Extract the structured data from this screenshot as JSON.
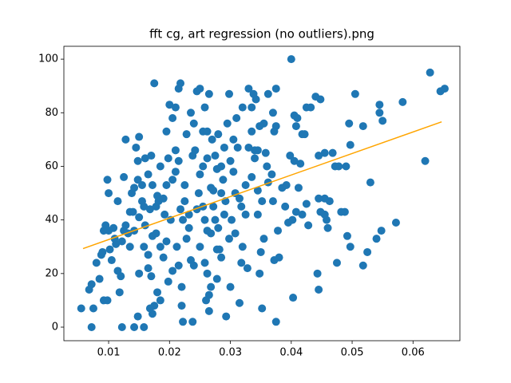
{
  "chart_data": {
    "type": "scatter",
    "title": "fft cg, art regression (no outliers).png",
    "xlim": [
      0.00265,
      0.0677
    ],
    "ylim": [
      -5.06,
      104.8
    ],
    "xticks": [
      0.01,
      0.02,
      0.03,
      0.04,
      0.05,
      0.06
    ],
    "yticks": [
      0,
      20,
      40,
      60,
      80,
      100
    ],
    "grid": false,
    "series": [
      {
        "type": "scatter",
        "color": "#1f77b4",
        "x": [
          0.04,
          0.0628,
          0.0645,
          0.0652,
          0.0583,
          0.0545,
          0.0545,
          0.055,
          0.0518,
          0.0505,
          0.0495,
          0.0497,
          0.062,
          0.053,
          0.0572,
          0.0548,
          0.054,
          0.0525,
          0.0518,
          0.0497,
          0.0492,
          0.0488,
          0.0482,
          0.0475,
          0.049,
          0.0478,
          0.0468,
          0.0472,
          0.0458,
          0.0455,
          0.0455,
          0.046,
          0.0463,
          0.0445,
          0.0448,
          0.0443,
          0.0445,
          0.0455,
          0.0445,
          0.0432,
          0.044,
          0.0448,
          0.0425,
          0.0422,
          0.0418,
          0.0415,
          0.041,
          0.0405,
          0.0408,
          0.0398,
          0.0405,
          0.0412,
          0.0418,
          0.0425,
          0.0428,
          0.0403,
          0.0395,
          0.0402,
          0.0408,
          0.0385,
          0.039,
          0.0392,
          0.0378,
          0.038,
          0.0375,
          0.0372,
          0.037,
          0.0375,
          0.0375,
          0.0372,
          0.037,
          0.0362,
          0.0355,
          0.0358,
          0.036,
          0.0368,
          0.0362,
          0.0352,
          0.0345,
          0.0345,
          0.035,
          0.0348,
          0.0352,
          0.0355,
          0.0348,
          0.0342,
          0.0338,
          0.0335,
          0.033,
          0.032,
          0.034,
          0.033,
          0.0335,
          0.0325,
          0.034,
          0.032,
          0.0318,
          0.0328,
          0.0315,
          0.0293,
          0.03,
          0.0285,
          0.0278,
          0.0298,
          0.029,
          0.0285,
          0.0278,
          0.0272,
          0.0268,
          0.0262,
          0.025,
          0.0258,
          0.0262,
          0.0278,
          0.0268,
          0.0265,
          0.026,
          0.0265,
          0.0238,
          0.0222,
          0.022,
          0.022,
          0.0215,
          0.0205,
          0.0198,
          0.0185,
          0.018,
          0.0175,
          0.0172,
          0.0168,
          0.017,
          0.0165,
          0.0158,
          0.016,
          0.0155,
          0.015,
          0.0148,
          0.0142,
          0.0158,
          0.0122,
          0.0098,
          0.0092,
          0.0085,
          0.008,
          0.0075,
          0.0072,
          0.0068,
          0.0055,
          0.0072,
          0.0088,
          0.009,
          0.0092,
          0.0095,
          0.01,
          0.0098,
          0.01,
          0.0102,
          0.0105,
          0.011,
          0.0112,
          0.0115,
          0.012,
          0.0118,
          0.0122,
          0.0125,
          0.0128,
          0.0128,
          0.0132,
          0.0135,
          0.0138,
          0.014,
          0.0142,
          0.0145,
          0.0148,
          0.015,
          0.015,
          0.0155,
          0.016,
          0.0165,
          0.017,
          0.0175,
          0.0168,
          0.0172,
          0.0178,
          0.018,
          0.0185,
          0.019,
          0.0195,
          0.0195,
          0.02,
          0.0205,
          0.021,
          0.0215,
          0.0218,
          0.0215,
          0.021,
          0.0205,
          0.0218,
          0.0222,
          0.0225,
          0.0228,
          0.0232,
          0.0235,
          0.024,
          0.0245,
          0.0248,
          0.025,
          0.0235,
          0.024,
          0.0238,
          0.0242,
          0.0245,
          0.025,
          0.0258,
          0.0265,
          0.0255,
          0.0262,
          0.027,
          0.0275,
          0.028,
          0.0285,
          0.029,
          0.03,
          0.0295,
          0.0298,
          0.0305,
          0.031,
          0.0312,
          0.0288,
          0.0292,
          0.0268,
          0.0255,
          0.0258,
          0.0255,
          0.0262,
          0.0308,
          0.0315,
          0.0302,
          0.0308,
          0.0318,
          0.0325,
          0.0305,
          0.0185,
          0.019,
          0.0195,
          0.0192,
          0.0178,
          0.0165,
          0.0135,
          0.0142,
          0.0158,
          0.0148,
          0.0115,
          0.0108,
          0.0125,
          0.0198,
          0.021,
          0.0228,
          0.0275,
          0.0282,
          0.028,
          0.0335,
          0.0345,
          0.0212,
          0.0182,
          0.0172,
          0.0202,
          0.0225,
          0.0232,
          0.0272
        ],
        "y": [
          100,
          95,
          88,
          89,
          84,
          83,
          80,
          77,
          75,
          87,
          76,
          68,
          62,
          54,
          39,
          36,
          33,
          28,
          23,
          30,
          34,
          43,
          43,
          24,
          60,
          60,
          65,
          60,
          40,
          48,
          42,
          37,
          47,
          48,
          43,
          20,
          14,
          65,
          64,
          82,
          86,
          85,
          82,
          72,
          72,
          61,
          78,
          79,
          75,
          64,
          62,
          52,
          42,
          46,
          38,
          11,
          39,
          40,
          43,
          52,
          45,
          53,
          36,
          26,
          2,
          25,
          47,
          75,
          89,
          73,
          80,
          87,
          76,
          65,
          60,
          57,
          54,
          47,
          51,
          42,
          28,
          20,
          7,
          33,
          75,
          85,
          87,
          82,
          89,
          82,
          66,
          67,
          56,
          53,
          63,
          30,
          24,
          22,
          9,
          4,
          15,
          26,
          29,
          33,
          42,
          50,
          59,
          45,
          35,
          36,
          30,
          24,
          20,
          18,
          15,
          12,
          10,
          6,
          2,
          2,
          8,
          15,
          23,
          21,
          17,
          10,
          13,
          8,
          5,
          7,
          19,
          22,
          30,
          38,
          47,
          20,
          4,
          0,
          0,
          0,
          10,
          10,
          18,
          24,
          7,
          16,
          14,
          7,
          0,
          27,
          28,
          36,
          38,
          36,
          55,
          50,
          29,
          25,
          33,
          31,
          21,
          19,
          13,
          32,
          36,
          38,
          70,
          35,
          43,
          50,
          43,
          52,
          67,
          62,
          71,
          41,
          53,
          63,
          57,
          64,
          91,
          44,
          34,
          45,
          49,
          60,
          48,
          53,
          73,
          83,
          78,
          82,
          89,
          91,
          62,
          58,
          55,
          44,
          40,
          47,
          33,
          37,
          25,
          23,
          44,
          50,
          57,
          80,
          76,
          64,
          66,
          88,
          89,
          82,
          87,
          73,
          73,
          70,
          64,
          72,
          60,
          67,
          62,
          76,
          87,
          70,
          78,
          67,
          55,
          47,
          52,
          45,
          40,
          60,
          63,
          50,
          48,
          40,
          35,
          45,
          42,
          58,
          30,
          26,
          32,
          42,
          35,
          27,
          30,
          36,
          45,
          55,
          47,
          37,
          56,
          63,
          66,
          72,
          40,
          29,
          37,
          73,
          66,
          30,
          47,
          53,
          40,
          53,
          42,
          51
        ]
      },
      {
        "type": "line",
        "color": "#ffa500",
        "x": [
          0.0058,
          0.0647
        ],
        "y": [
          29.3,
          76.6
        ]
      }
    ]
  }
}
